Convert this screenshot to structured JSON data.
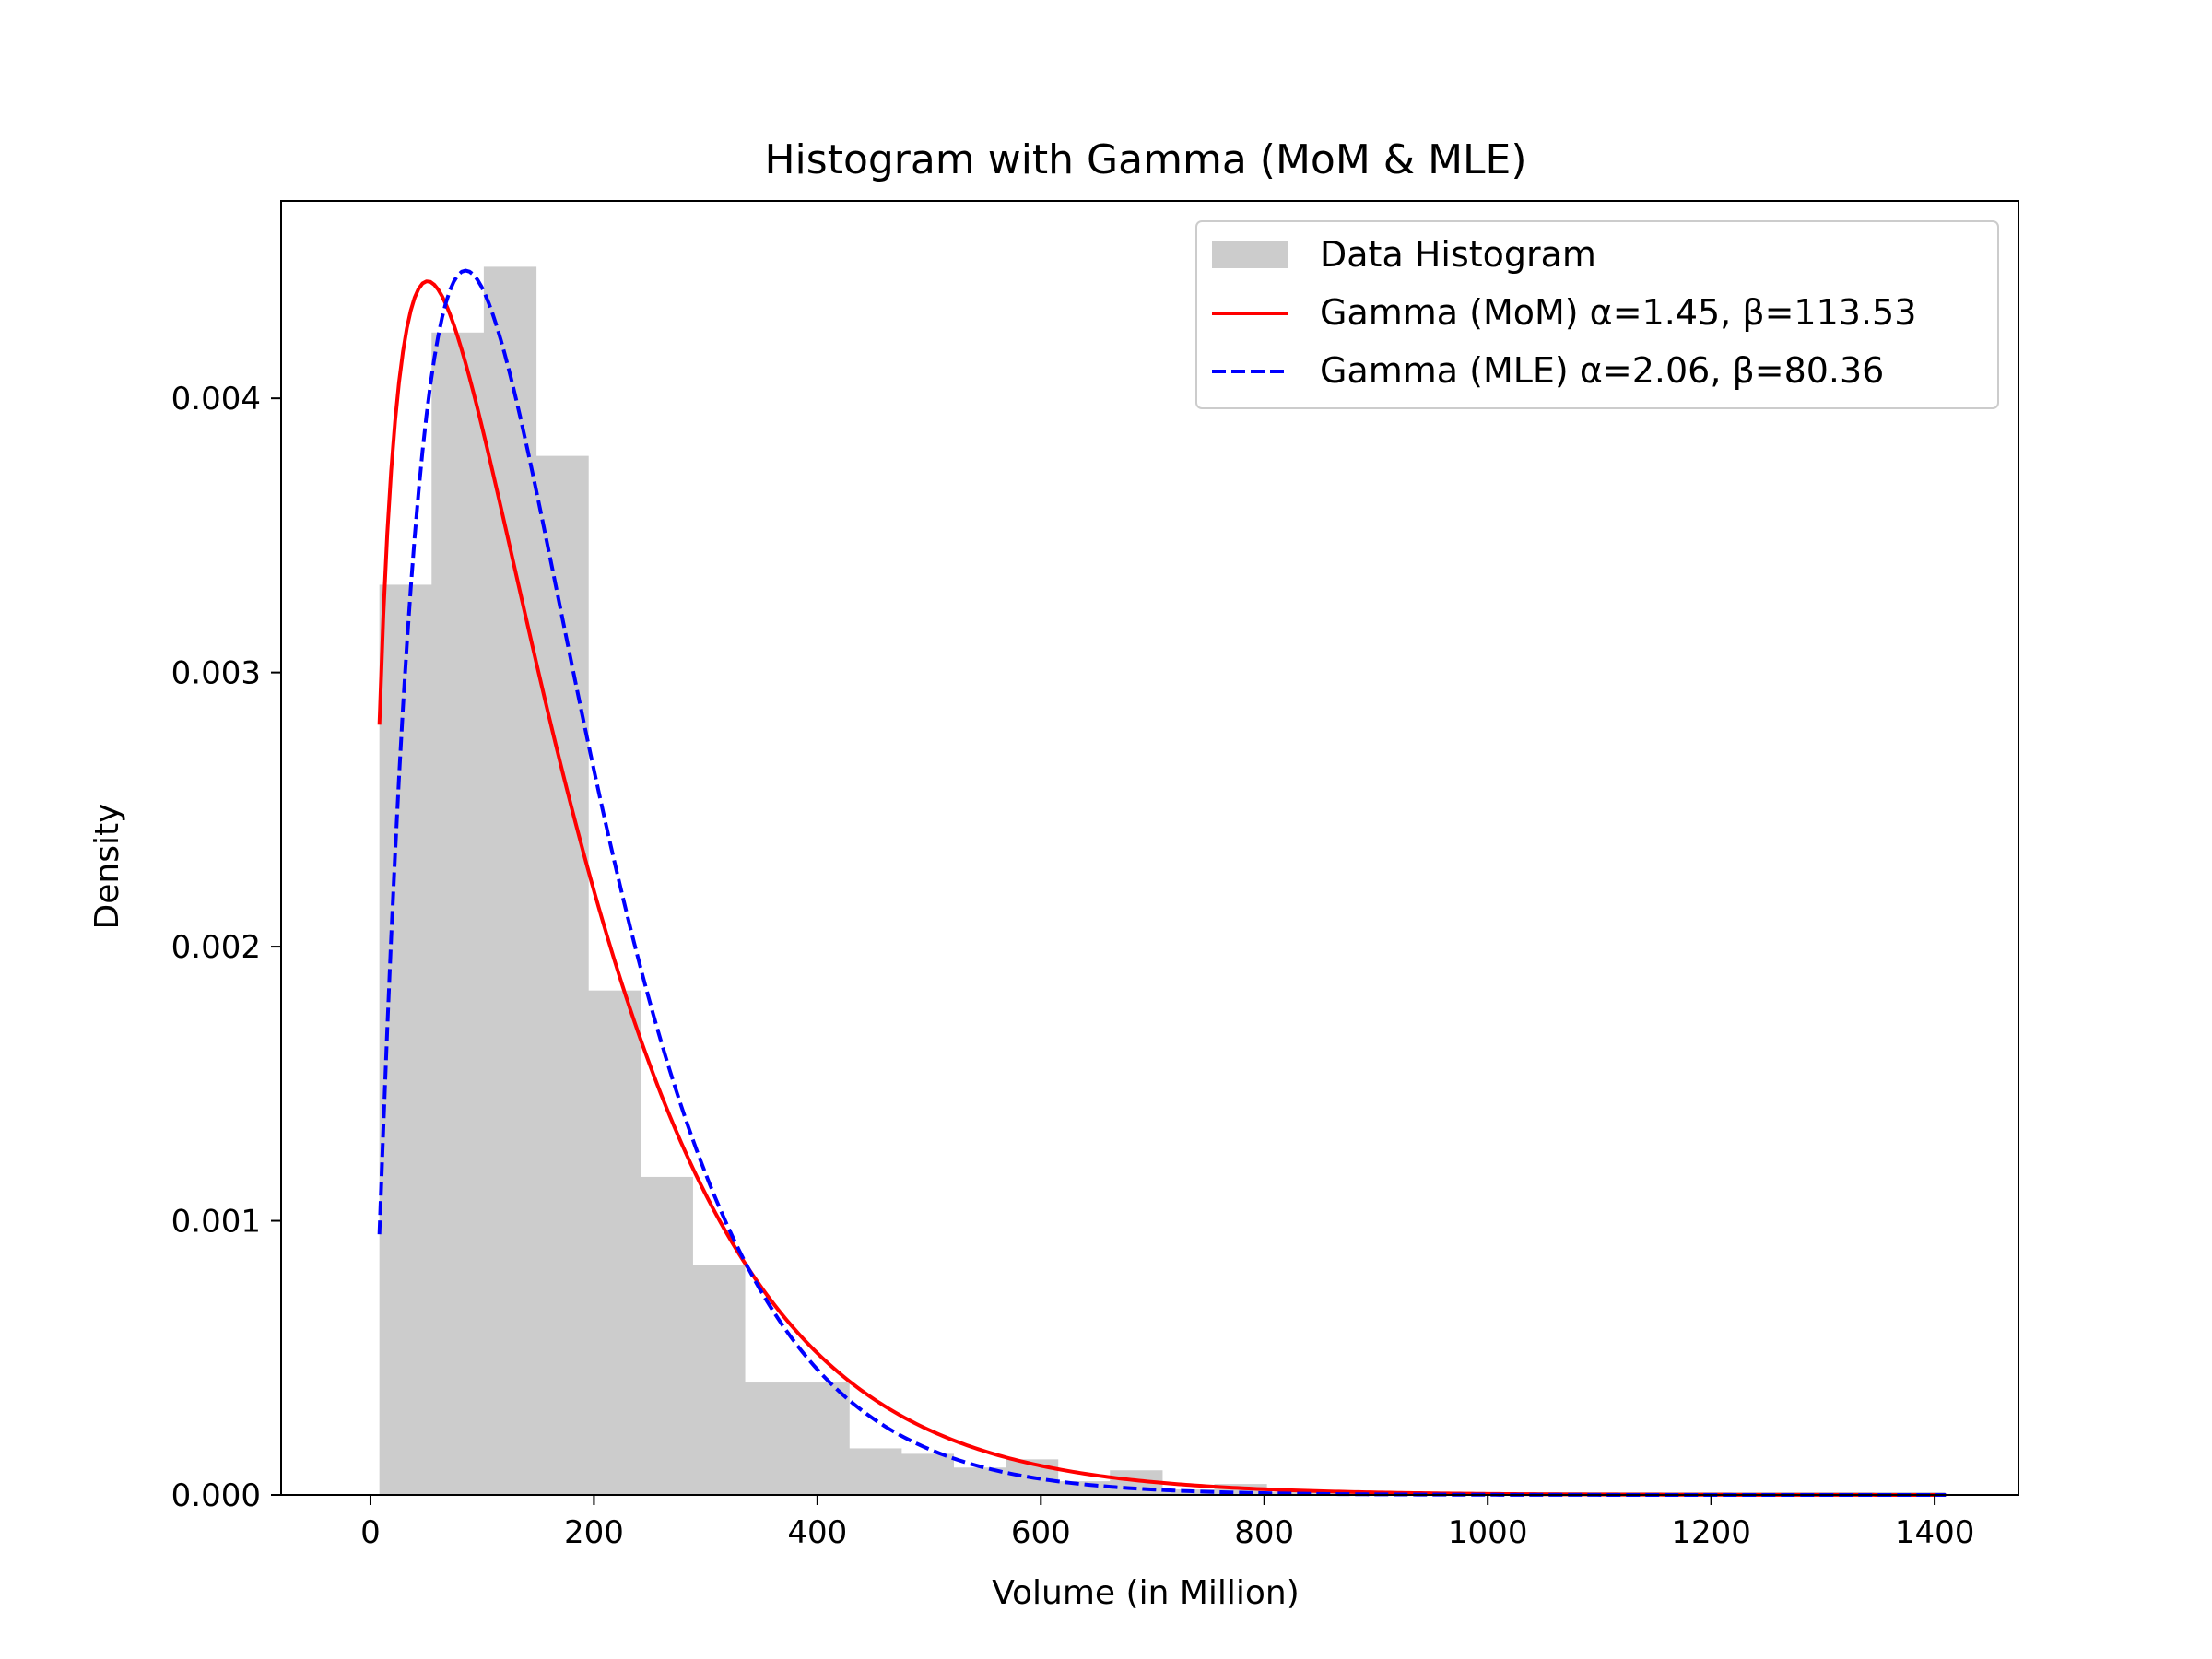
{
  "chart_data": {
    "type": "bar",
    "title": "Histogram with Gamma (MoM & MLE)",
    "xlabel": "Volume (in Million)",
    "ylabel": "Density",
    "xlim": [
      -80,
      1475
    ],
    "ylim": [
      0,
      0.00472
    ],
    "x_ticks": [
      0,
      200,
      400,
      600,
      800,
      1000,
      1200,
      1400
    ],
    "y_ticks": [
      0,
      0.001,
      0.002,
      0.003,
      0.004
    ],
    "x_tick_labels": [
      "0",
      "200",
      "400",
      "600",
      "800",
      "1000",
      "1200",
      "1400"
    ],
    "y_tick_labels": [
      "0.000",
      "0.001",
      "0.002",
      "0.003",
      "0.004"
    ],
    "grid": false,
    "legend_position": "top-right",
    "histogram": {
      "name": "Data Histogram",
      "color": "#cccccc",
      "bin_start": 8,
      "bin_width": 46.7,
      "values": [
        0.00332,
        0.00424,
        0.00448,
        0.00379,
        0.00184,
        0.00116,
        0.00084,
        0.00041,
        0.00041,
        0.00017,
        0.00015,
        0.0001,
        0.00013,
        5e-05,
        9e-05,
        2e-05,
        4e-05,
        1e-05,
        1e-05,
        1e-05,
        1e-05,
        1e-05,
        1e-05,
        1e-05,
        1e-05,
        1e-05,
        1e-05,
        1e-05,
        1e-05,
        1e-05
      ]
    },
    "series": [
      {
        "name": "Gamma (MoM) α=1.45, β=113.53",
        "color": "#ff0000",
        "style": "solid",
        "shape": 1.45,
        "scale": 113.53
      },
      {
        "name": "Gamma (MLE) α=2.06, β=80.36",
        "color": "#0000ff",
        "style": "dashed",
        "shape": 2.06,
        "scale": 80.36
      }
    ],
    "curve_x_range": [
      8,
      1410
    ]
  }
}
